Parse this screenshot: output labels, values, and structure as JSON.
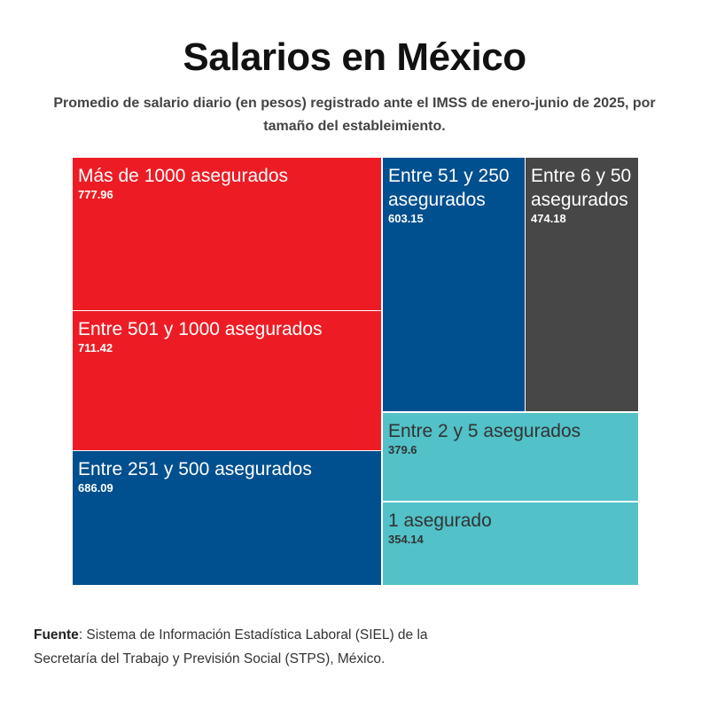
{
  "chart_data": {
    "type": "treemap",
    "title": "Salarios en México",
    "subtitle": "Promedio de salario diario (en pesos) registrado ante el IMSS de enero-junio de 2025, por tamaño del estableimiento.",
    "items": [
      {
        "label": "Más de 1000 asegurados",
        "value": 777.96,
        "display": "777.96",
        "color": "#ED1C24",
        "text_color": "#ffffff"
      },
      {
        "label": "Entre 501 y 1000 asegurados",
        "value": 711.42,
        "display": "711.42",
        "color": "#ED1C24",
        "text_color": "#ffffff"
      },
      {
        "label": "Entre 251 y 500 asegurados",
        "value": 686.09,
        "display": "686.09",
        "color": "#004F8F",
        "text_color": "#ffffff"
      },
      {
        "label": "Entre 51 y 250 asegurados",
        "value": 603.15,
        "display": "603.15",
        "color": "#004F8F",
        "text_color": "#ffffff"
      },
      {
        "label": "Entre 6 y 50 asegurados",
        "value": 474.18,
        "display": "474.18",
        "color": "#474747",
        "text_color": "#ffffff"
      },
      {
        "label": "Entre 2 y 5 asegurados",
        "value": 379.6,
        "display": "379.6",
        "color": "#52C1C8",
        "text_color": "#333333"
      },
      {
        "label": "1 asegurado",
        "value": 354.14,
        "display": "354.14",
        "color": "#52C1C8",
        "text_color": "#333333"
      }
    ]
  },
  "source": {
    "label": "Fuente",
    "text": ": Sistema de Información Estadística Laboral (SIEL) de la Secretaría del Trabajo y Previsión Social (STPS), México."
  }
}
